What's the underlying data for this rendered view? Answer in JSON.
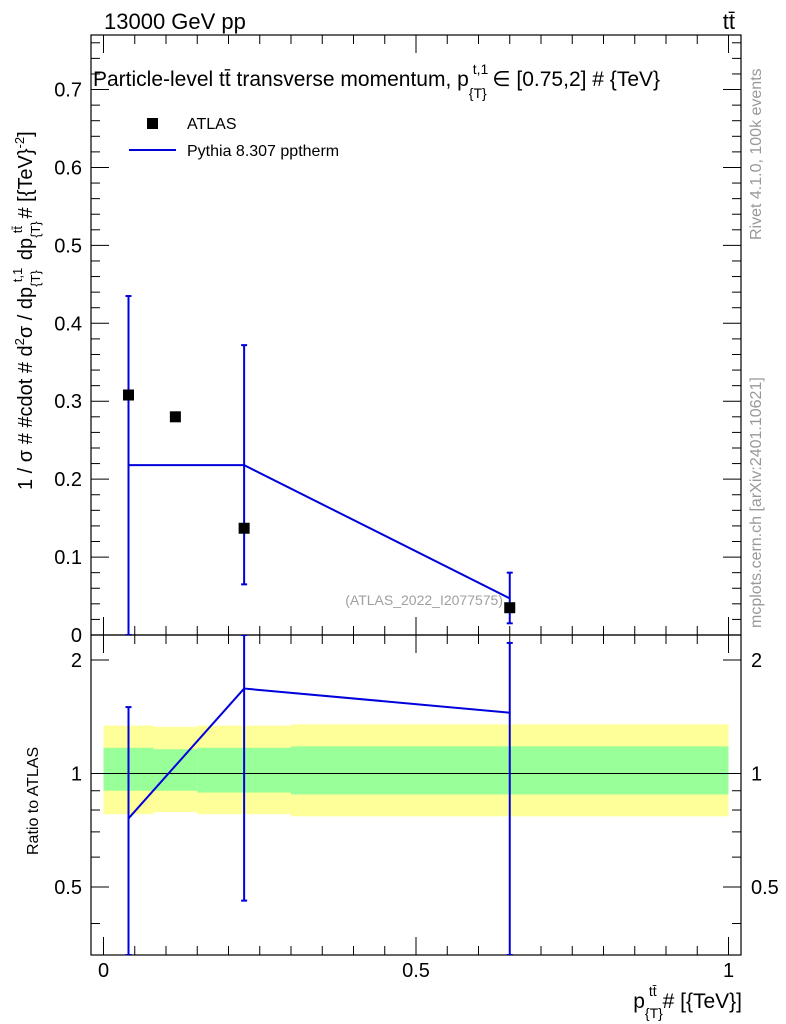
{
  "header": {
    "left_label": "13000 GeV pp",
    "right_label": "tt̄"
  },
  "side_labels": {
    "rivet": "Rivet 4.1.0,  100k events",
    "mcplots": "mcplots.cern.ch [arXiv:2401.10621]"
  },
  "chart_data": [
    {
      "type": "scatter",
      "panel": "main",
      "title": "Particle-level tt̄ transverse momentum, p_{T}^{t,1} ∈ [0.75,2] # {TeV}",
      "title_parts": {
        "base": "Particle-level tt̄ transverse momentum, p",
        "sub": "{T}",
        "sup": "t,1",
        "tail": "∈ [0.75,2] # {TeV}"
      },
      "xlabel": "p_{T}^{tt̄} # [{TeV}]",
      "xlabel_parts": {
        "base": "p",
        "sub": "{T}",
        "sup": "tt̄",
        "tail": "# [{TeV}]"
      },
      "ylabel": "1 / σ # #cdot # d²σ / dp_{T}^{t,1} dp_{T}^{tt̄} # [{TeV}^{-2}]",
      "xlim": [
        -0.02,
        1.02
      ],
      "ylim": [
        0,
        0.77
      ],
      "xticks": [
        "0",
        "0.5",
        "1"
      ],
      "xtick_values": [
        0,
        0.5,
        1
      ],
      "yticks": [
        "0",
        "0.1",
        "0.2",
        "0.3",
        "0.4",
        "0.5",
        "0.6",
        "0.7"
      ],
      "ytick_values": [
        0,
        0.1,
        0.2,
        0.3,
        0.4,
        0.5,
        0.6,
        0.7
      ],
      "watermark": "(ATLAS_2022_I2077575)",
      "legend": {
        "placement": "top-left",
        "entries": [
          "ATLAS",
          "Pythia 8.307 pptherm"
        ]
      },
      "series": [
        {
          "name": "ATLAS",
          "kind": "markers",
          "color": "#000000",
          "x": [
            0.04,
            0.115,
            0.225,
            0.65
          ],
          "y": [
            0.308,
            0.28,
            0.137,
            0.035
          ]
        },
        {
          "name": "Pythia 8.307 pptherm",
          "kind": "line",
          "color": "#0000dd",
          "x": [
            0.04,
            0.225,
            0.65
          ],
          "y": [
            0.218,
            0.218,
            0.047
          ],
          "err_low": [
            0.0,
            0.065,
            0.015
          ],
          "err_high": [
            0.435,
            0.372,
            0.08
          ]
        }
      ]
    },
    {
      "type": "line",
      "panel": "ratio",
      "ylabel": "Ratio to ATLAS",
      "xlim": [
        -0.02,
        1.02
      ],
      "ylim": [
        0.33,
        2.33
      ],
      "yticks": [
        "0.5",
        "1",
        "2"
      ],
      "ytick_values": [
        0.5,
        1,
        2
      ],
      "bands": {
        "yellow_color": "#ffff99",
        "green_color": "#99ff99",
        "bins": [
          {
            "x0": 0.0,
            "x1": 0.08,
            "y_lo": 0.78,
            "y_hi": 1.34,
            "g_lo": 0.9,
            "g_hi": 1.17
          },
          {
            "x0": 0.08,
            "x1": 0.15,
            "y_lo": 0.79,
            "y_hi": 1.33,
            "g_lo": 0.9,
            "g_hi": 1.16
          },
          {
            "x0": 0.15,
            "x1": 0.3,
            "y_lo": 0.78,
            "y_hi": 1.34,
            "g_lo": 0.89,
            "g_hi": 1.17
          },
          {
            "x0": 0.3,
            "x1": 1.0,
            "y_lo": 0.77,
            "y_hi": 1.35,
            "g_lo": 0.88,
            "g_hi": 1.18
          }
        ]
      },
      "series": [
        {
          "name": "Pythia 8.307 pptherm / ATLAS",
          "color": "#0000dd",
          "x": [
            0.04,
            0.225,
            0.65
          ],
          "y": [
            0.76,
            1.68,
            1.45
          ],
          "err_low": [
            0.33,
            0.46,
            0.33
          ],
          "err_high": [
            1.5,
            2.33,
            2.22
          ]
        }
      ]
    }
  ]
}
